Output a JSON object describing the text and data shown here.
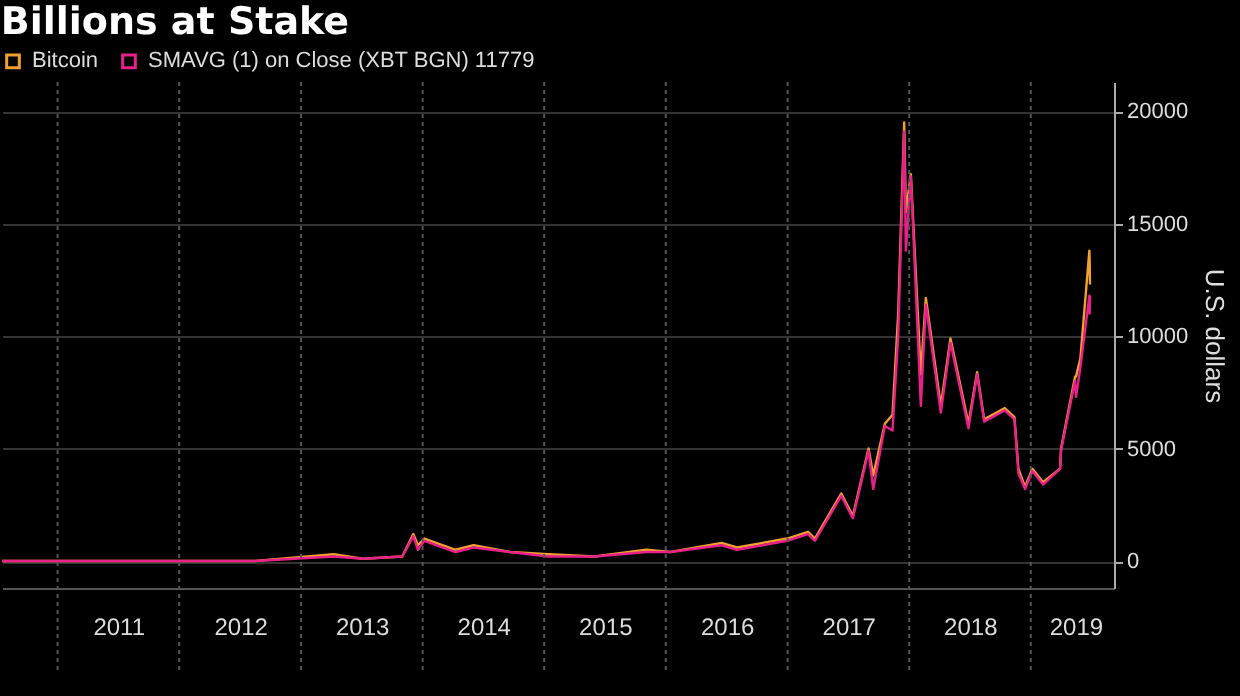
{
  "chart_data": {
    "type": "line",
    "title": "Billions at Stake",
    "ylabel": "U.S. dollars",
    "x": [
      "2010-07-18",
      "2011-06-08",
      "2012-08-16",
      "2013-04-09",
      "2013-07-05",
      "2013-11-01",
      "2013-12-04",
      "2013-12-18",
      "2014-01-06",
      "2014-04-10",
      "2014-06-03",
      "2014-09-20",
      "2015-01-14",
      "2015-06-01",
      "2015-11-04",
      "2016-01-15",
      "2016-06-17",
      "2016-08-02",
      "2016-12-31",
      "2017-03-03",
      "2017-03-24",
      "2017-06-11",
      "2017-07-16",
      "2017-09-01",
      "2017-09-15",
      "2017-10-20",
      "2017-11-12",
      "2017-11-29",
      "2017-12-17",
      "2017-12-22",
      "2018-01-06",
      "2018-02-05",
      "2018-02-20",
      "2018-04-06",
      "2018-05-05",
      "2018-06-28",
      "2018-07-24",
      "2018-08-14",
      "2018-10-15",
      "2018-11-13",
      "2018-11-25",
      "2018-12-15",
      "2019-01-06",
      "2019-02-07",
      "2019-03-30",
      "2019-04-02",
      "2019-05-14",
      "2019-05-17",
      "2019-05-30",
      "2019-06-26",
      "2019-06-27",
      "2019-06-28"
    ],
    "series": [
      {
        "name": "Bitcoin",
        "color": "#f0a030",
        "values": [
          0,
          0,
          0,
          300,
          100,
          200,
          1200,
          700,
          1000,
          500,
          700,
          400,
          300,
          200,
          500,
          400,
          800,
          600,
          1000,
          1300,
          1000,
          3000,
          2000,
          5000,
          3800,
          6100,
          6500,
          11000,
          19500,
          15500,
          17200,
          8300,
          11700,
          6900,
          9900,
          6100,
          8400,
          6300,
          6800,
          6400,
          4100,
          3300,
          4100,
          3500,
          4100,
          5000,
          8200,
          8200,
          9000,
          13800,
          13300,
          12300
        ]
      },
      {
        "name": "SMAVG (1)  on Close (XBT BGN) 11779",
        "color": "#e8208a",
        "values": [
          0,
          0,
          0,
          200,
          100,
          200,
          1100,
          500,
          900,
          400,
          600,
          400,
          200,
          200,
          400,
          400,
          700,
          500,
          900,
          1200,
          900,
          2900,
          1900,
          4900,
          3200,
          6000,
          5800,
          10000,
          19100,
          13800,
          17100,
          6900,
          11400,
          6600,
          9700,
          5900,
          8300,
          6200,
          6700,
          6300,
          3900,
          3200,
          4000,
          3400,
          4100,
          4900,
          8000,
          7300,
          8600,
          11800,
          11000,
          11800
        ]
      }
    ],
    "xlim": [
      "2010-07-18",
      "2019-09-08"
    ],
    "xticks": [
      {
        "value": "2011-01-01",
        "label": null
      },
      {
        "value": "2011-07-02",
        "label": "2011"
      },
      {
        "value": "2012-01-01",
        "label": null
      },
      {
        "value": "2012-07-02",
        "label": "2012"
      },
      {
        "value": "2013-01-01",
        "label": null
      },
      {
        "value": "2013-07-02",
        "label": "2013"
      },
      {
        "value": "2014-01-01",
        "label": null
      },
      {
        "value": "2014-07-02",
        "label": "2014"
      },
      {
        "value": "2015-01-01",
        "label": null
      },
      {
        "value": "2015-07-02",
        "label": "2015"
      },
      {
        "value": "2016-01-01",
        "label": null
      },
      {
        "value": "2016-07-02",
        "label": "2016"
      },
      {
        "value": "2017-01-01",
        "label": null
      },
      {
        "value": "2017-07-02",
        "label": "2017"
      },
      {
        "value": "2018-01-01",
        "label": null
      },
      {
        "value": "2018-07-02",
        "label": "2018"
      },
      {
        "value": "2019-01-01",
        "label": null
      },
      {
        "value": "2019-05-15",
        "label": "2019"
      }
    ],
    "ylim": [
      -1200,
      21300
    ],
    "yticks": [
      0,
      5000,
      10000,
      15000,
      20000
    ],
    "grid": true,
    "legend": "top left",
    "marker": "none",
    "line_style": "solid"
  }
}
